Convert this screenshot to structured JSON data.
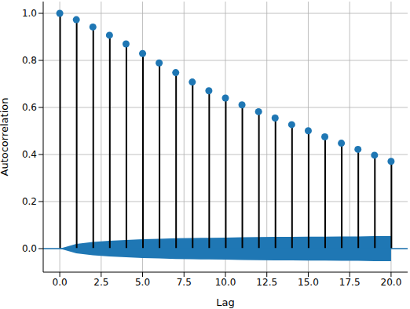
{
  "chart_data": {
    "type": "stem",
    "x_label": "Lag",
    "y_label": "Autocorrelation",
    "x": [
      0,
      1,
      2,
      3,
      4,
      5,
      6,
      7,
      8,
      9,
      10,
      11,
      12,
      13,
      14,
      15,
      16,
      17,
      18,
      19,
      20
    ],
    "values": [
      1.0,
      0.973,
      0.942,
      0.907,
      0.87,
      0.829,
      0.789,
      0.748,
      0.708,
      0.671,
      0.64,
      0.611,
      0.582,
      0.555,
      0.527,
      0.501,
      0.475,
      0.448,
      0.422,
      0.397,
      0.371
    ],
    "confidence_band": {
      "lower": [
        0,
        -0.02,
        -0.028,
        -0.033,
        -0.037,
        -0.04,
        -0.042,
        -0.044,
        -0.045,
        -0.046,
        -0.047,
        -0.048,
        -0.049,
        -0.05,
        -0.05,
        -0.051,
        -0.051,
        -0.052,
        -0.052,
        -0.053,
        -0.053
      ],
      "upper": [
        0,
        0.02,
        0.028,
        0.033,
        0.037,
        0.04,
        0.042,
        0.044,
        0.045,
        0.046,
        0.047,
        0.048,
        0.049,
        0.05,
        0.05,
        0.051,
        0.051,
        0.052,
        0.052,
        0.053,
        0.053
      ]
    },
    "hline": 0,
    "color": "#1f77b4",
    "xlim": [
      -1,
      21
    ],
    "xticks": [
      {
        "value": 0,
        "label": "0.0"
      },
      {
        "value": 2.5,
        "label": "2.5"
      },
      {
        "value": 5,
        "label": "5.0"
      },
      {
        "value": 7.5,
        "label": "7.5"
      },
      {
        "value": 10,
        "label": "10.0"
      },
      {
        "value": 12.5,
        "label": "12.5"
      },
      {
        "value": 15,
        "label": "15.0"
      },
      {
        "value": 17.5,
        "label": "17.5"
      },
      {
        "value": 20,
        "label": "20.0"
      }
    ],
    "ylim": [
      -0.1,
      1.05
    ],
    "yticks": [
      {
        "value": 0,
        "label": "0.0"
      },
      {
        "value": 0.2,
        "label": "0.2"
      },
      {
        "value": 0.4,
        "label": "0.4"
      },
      {
        "value": 0.6,
        "label": "0.6"
      },
      {
        "value": 0.8,
        "label": "0.8"
      },
      {
        "value": 1,
        "label": "1.0"
      }
    ],
    "grid": true,
    "marker": "circle"
  }
}
